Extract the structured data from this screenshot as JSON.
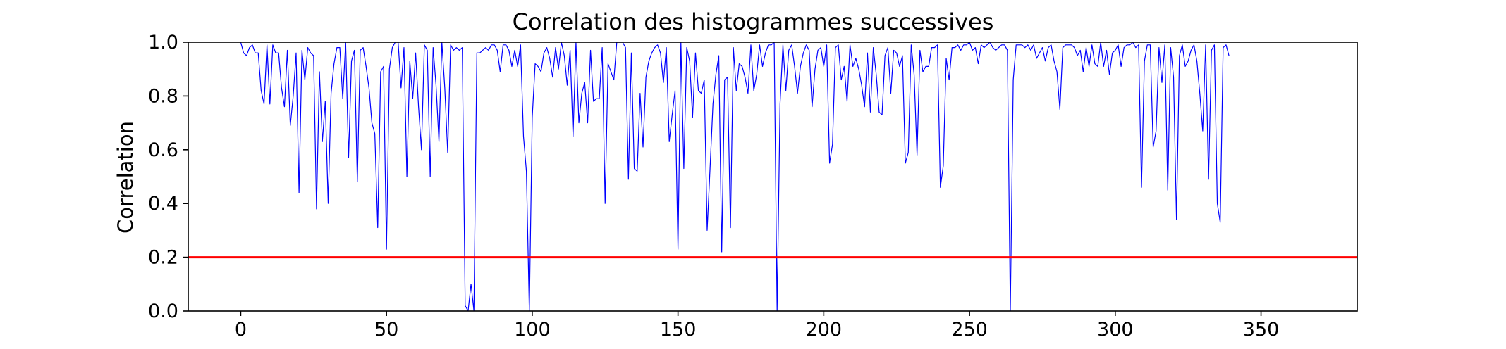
{
  "chart_data": {
    "type": "line",
    "title": "Correlation des histogrammes successives",
    "xlabel": "",
    "ylabel": "Correlation",
    "xlim": [
      -18,
      383
    ],
    "ylim": [
      0.0,
      1.0
    ],
    "x_ticks": [
      0,
      50,
      100,
      150,
      200,
      250,
      300,
      350
    ],
    "x_tick_labels": [
      "0",
      "50",
      "100",
      "150",
      "200",
      "250",
      "300",
      "350"
    ],
    "y_ticks": [
      0.0,
      0.2,
      0.4,
      0.6,
      0.8,
      1.0
    ],
    "y_tick_labels": [
      "0.0",
      "0.2",
      "0.4",
      "0.6",
      "0.8",
      "1.0"
    ],
    "grid": false,
    "series": [
      {
        "color": "#0000ff",
        "x_start": 0,
        "x_step": 1,
        "values": [
          1.0,
          0.96,
          0.95,
          0.98,
          0.99,
          0.96,
          0.96,
          0.82,
          0.77,
          0.99,
          0.77,
          0.99,
          0.96,
          0.96,
          0.83,
          0.76,
          0.97,
          0.69,
          0.8,
          0.96,
          0.44,
          0.97,
          0.86,
          0.98,
          0.96,
          0.95,
          0.38,
          0.89,
          0.63,
          0.78,
          0.4,
          0.81,
          0.92,
          0.98,
          0.98,
          0.79,
          1.0,
          0.57,
          0.93,
          0.97,
          0.48,
          0.97,
          0.98,
          0.91,
          0.83,
          0.7,
          0.66,
          0.31,
          0.89,
          0.91,
          0.23,
          0.9,
          0.98,
          1.0,
          1.0,
          0.83,
          0.98,
          0.5,
          0.93,
          0.79,
          0.96,
          0.76,
          0.6,
          0.99,
          0.97,
          0.5,
          0.98,
          0.84,
          0.63,
          1.0,
          0.83,
          0.59,
          0.99,
          0.97,
          0.98,
          0.97,
          0.98,
          0.02,
          0.0,
          0.1,
          0.0,
          0.96,
          0.96,
          0.97,
          0.98,
          0.97,
          0.99,
          0.99,
          0.97,
          0.89,
          0.99,
          0.99,
          0.97,
          0.91,
          0.97,
          0.91,
          0.99,
          0.65,
          0.52,
          0.0,
          0.72,
          0.92,
          0.91,
          0.89,
          0.96,
          0.98,
          0.94,
          0.87,
          0.98,
          0.9,
          1.0,
          0.95,
          0.84,
          0.97,
          0.65,
          1.0,
          0.7,
          0.81,
          0.85,
          0.7,
          0.97,
          0.78,
          0.79,
          0.79,
          0.98,
          0.4,
          0.92,
          0.89,
          0.86,
          1.0,
          1.0,
          1.0,
          0.98,
          0.49,
          0.96,
          0.53,
          0.52,
          0.81,
          0.61,
          0.87,
          0.93,
          0.96,
          0.98,
          0.99,
          0.96,
          0.85,
          0.98,
          0.63,
          0.73,
          0.82,
          0.23,
          1.0,
          0.53,
          0.98,
          0.93,
          0.72,
          0.96,
          0.82,
          0.81,
          0.86,
          0.3,
          0.53,
          0.77,
          0.88,
          0.95,
          0.22,
          0.86,
          0.87,
          0.31,
          0.98,
          0.82,
          0.92,
          0.91,
          0.87,
          0.81,
          0.99,
          0.82,
          0.88,
          0.99,
          0.91,
          0.96,
          0.99,
          0.99,
          1.0,
          0.0,
          0.77,
          0.99,
          0.82,
          0.97,
          0.99,
          0.91,
          0.81,
          0.91,
          0.96,
          0.99,
          0.97,
          0.76,
          0.9,
          0.97,
          0.98,
          0.91,
          0.99,
          0.55,
          0.62,
          0.98,
          0.99,
          0.86,
          0.91,
          0.78,
          0.99,
          0.91,
          0.94,
          0.9,
          0.84,
          0.76,
          0.96,
          0.74,
          0.98,
          0.88,
          0.74,
          0.73,
          0.95,
          0.98,
          0.81,
          0.97,
          0.96,
          0.91,
          0.95,
          0.55,
          0.59,
          0.99,
          0.88,
          0.58,
          0.97,
          0.89,
          0.91,
          0.91,
          0.98,
          0.98,
          0.99,
          0.46,
          0.54,
          0.94,
          0.86,
          0.98,
          0.98,
          0.99,
          0.97,
          0.99,
          0.99,
          1.0,
          0.97,
          0.98,
          0.92,
          0.99,
          0.98,
          0.99,
          1.0,
          0.98,
          0.97,
          0.98,
          0.99,
          0.99,
          0.97,
          0.0,
          0.86,
          0.99,
          0.99,
          0.99,
          0.98,
          0.99,
          0.97,
          0.99,
          0.94,
          0.96,
          0.98,
          0.93,
          0.98,
          0.99,
          0.93,
          0.89,
          0.75,
          0.98,
          0.99,
          0.99,
          0.99,
          0.98,
          0.95,
          0.97,
          0.89,
          0.98,
          0.91,
          0.99,
          0.92,
          0.91,
          1.0,
          0.91,
          0.97,
          0.88,
          0.96,
          0.97,
          0.99,
          0.91,
          0.98,
          0.99,
          0.99,
          1.0,
          0.98,
          0.99,
          0.46,
          0.93,
          0.99,
          0.99,
          0.61,
          0.67,
          0.98,
          0.85,
          0.99,
          0.45,
          0.98,
          0.87,
          0.34,
          0.95,
          0.99,
          0.91,
          0.93,
          0.97,
          0.99,
          0.93,
          0.81,
          0.67,
          0.99,
          0.49,
          0.97,
          0.99,
          0.4,
          0.33,
          0.98,
          0.99,
          0.95
        ]
      }
    ],
    "threshold": {
      "y": 0.2,
      "color": "#ff0000"
    }
  }
}
